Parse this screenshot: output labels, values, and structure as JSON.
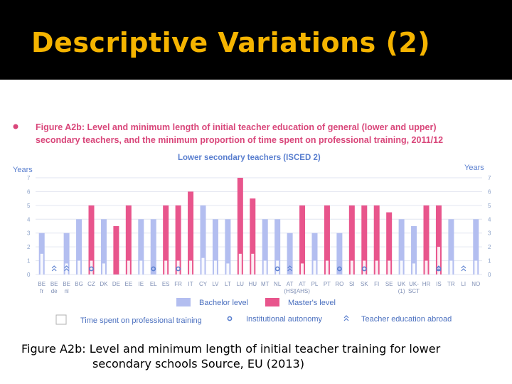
{
  "slide": {
    "title": "Descriptive Variations (2)",
    "caption_line1": "Figure A2b: Level and minimum length of initial teacher training for lower",
    "caption_line2": "secondary schools Source, EU (2013)"
  },
  "colors": {
    "bachelor": "#b3bef0",
    "master": "#e8558c",
    "training": "#ffffff",
    "title_band": "#000000",
    "title_text": "#f5b400",
    "figure_title": "#d9467a",
    "axis_text": "#5a7fcf"
  },
  "chart_data": {
    "type": "bar",
    "title_line1": "Figure A2b: Level and minimum length of initial teacher education of general (lower and upper)",
    "title_line2": "secondary teachers, and the minimum proportion of time spent on professional training, 2011/12",
    "subtitle": "Lower secondary teachers (ISCED 2)",
    "ylabel_left": "Years",
    "ylabel_right": "Years",
    "ylim": [
      0,
      7
    ],
    "yticks": [
      "0",
      "1",
      "2",
      "3",
      "4",
      "5",
      "6",
      "7"
    ],
    "grid": true,
    "categories": [
      {
        "line1": "BE",
        "line2": "fr"
      },
      {
        "line1": "BE",
        "line2": "de"
      },
      {
        "line1": "BE",
        "line2": "nl"
      },
      {
        "line1": "BG",
        "line2": ""
      },
      {
        "line1": "CZ",
        "line2": ""
      },
      {
        "line1": "DK",
        "line2": ""
      },
      {
        "line1": "DE",
        "line2": ""
      },
      {
        "line1": "EE",
        "line2": ""
      },
      {
        "line1": "IE",
        "line2": ""
      },
      {
        "line1": "EL",
        "line2": ""
      },
      {
        "line1": "ES",
        "line2": ""
      },
      {
        "line1": "FR",
        "line2": ""
      },
      {
        "line1": "IT",
        "line2": ""
      },
      {
        "line1": "CY",
        "line2": ""
      },
      {
        "line1": "LV",
        "line2": ""
      },
      {
        "line1": "LT",
        "line2": ""
      },
      {
        "line1": "LU",
        "line2": ""
      },
      {
        "line1": "HU",
        "line2": ""
      },
      {
        "line1": "MT",
        "line2": ""
      },
      {
        "line1": "NL",
        "line2": ""
      },
      {
        "line1": "AT",
        "line2": "(HS)"
      },
      {
        "line1": "AT",
        "line2": "(AHS)"
      },
      {
        "line1": "PL",
        "line2": ""
      },
      {
        "line1": "PT",
        "line2": ""
      },
      {
        "line1": "RO",
        "line2": ""
      },
      {
        "line1": "SI",
        "line2": ""
      },
      {
        "line1": "SK",
        "line2": ""
      },
      {
        "line1": "FI",
        "line2": ""
      },
      {
        "line1": "SE",
        "line2": ""
      },
      {
        "line1": "UK",
        "line2": "(1)"
      },
      {
        "line1": "UK-",
        "line2": "SCT"
      },
      {
        "line1": "HR",
        "line2": ""
      },
      {
        "line1": "IS",
        "line2": ""
      },
      {
        "line1": "TR",
        "line2": ""
      },
      {
        "line1": "LI",
        "line2": ""
      },
      {
        "line1": "NO",
        "line2": ""
      }
    ],
    "series": [
      {
        "name": "Bachelor level",
        "values": [
          3,
          0,
          3,
          4,
          0,
          4,
          0,
          0,
          4,
          4,
          0,
          0,
          0,
          5,
          4,
          4,
          0,
          0,
          4,
          4,
          3,
          0,
          3,
          0,
          3,
          0,
          0,
          0,
          0,
          4,
          3.5,
          0,
          4,
          4,
          0,
          4
        ]
      },
      {
        "name": "Master's level",
        "values": [
          0,
          0,
          0,
          0,
          5,
          0,
          3.5,
          5,
          0,
          0,
          5,
          5,
          6,
          0,
          0,
          0,
          7,
          5.5,
          0,
          0,
          0,
          5,
          0,
          5,
          0,
          5,
          5,
          5,
          4.5,
          0,
          0,
          5,
          5,
          0,
          0,
          0
        ]
      },
      {
        "name": "Time spent on professional training",
        "values": [
          1.5,
          0,
          0.8,
          1,
          1,
          0.8,
          0,
          1,
          1,
          0,
          1,
          1,
          1,
          1.2,
          1,
          0.8,
          1.5,
          1.5,
          1,
          1,
          0,
          0.8,
          1,
          1,
          0,
          1,
          1,
          1,
          1,
          1,
          0.8,
          1,
          2,
          1,
          0,
          1
        ]
      }
    ],
    "markers": {
      "institutional_autonomy": [
        4,
        9,
        11,
        19,
        24,
        26,
        32
      ],
      "teacher_education_abroad": [
        1,
        2,
        20,
        32,
        34
      ]
    },
    "legend": {
      "bachelor": "Bachelor level",
      "master": "Master's level",
      "training": "Time spent on professional training",
      "autonomy": "Institutional autonomy",
      "abroad": "Teacher education abroad",
      "placement": "bottom"
    }
  }
}
